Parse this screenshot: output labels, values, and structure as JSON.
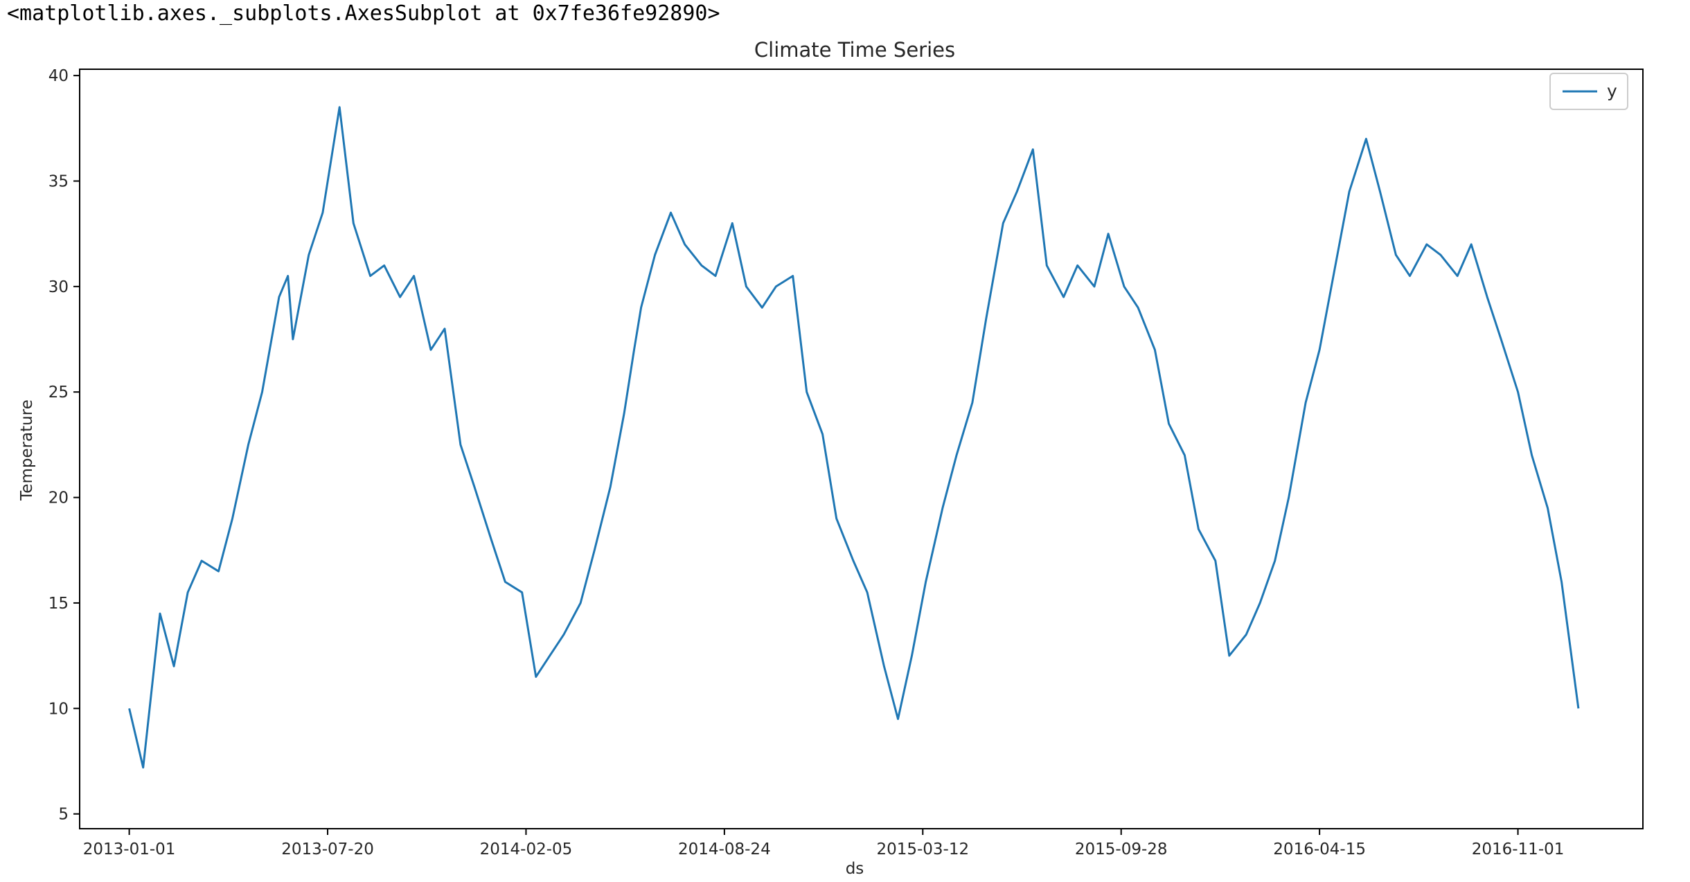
{
  "output_repr": "<matplotlib.axes._subplots.AxesSubplot at 0x7fe36fe92890>",
  "chart_data": {
    "type": "line",
    "title": "Climate Time Series",
    "xlabel": "ds",
    "ylabel": "Temperature",
    "ylim": [
      4.3,
      40.3
    ],
    "xlim": [
      "2012-11-12",
      "2017-03-07"
    ],
    "yticks": [
      5,
      10,
      15,
      20,
      25,
      30,
      35,
      40
    ],
    "xticks": [
      "2013-01-01",
      "2013-07-20",
      "2014-02-05",
      "2014-08-24",
      "2015-03-12",
      "2015-09-28",
      "2016-04-15",
      "2016-11-01"
    ],
    "grid": false,
    "legend_position": "top-right",
    "colors": {
      "line": "#1f77b4",
      "frame": "#000000"
    },
    "series": [
      {
        "name": "y",
        "x": [
          "2013-01-01",
          "2013-01-15",
          "2013-02-01",
          "2013-02-15",
          "2013-03-01",
          "2013-03-15",
          "2013-04-01",
          "2013-04-15",
          "2013-05-01",
          "2013-05-15",
          "2013-06-01",
          "2013-06-10",
          "2013-06-15",
          "2013-07-01",
          "2013-07-15",
          "2013-08-01",
          "2013-08-15",
          "2013-09-01",
          "2013-09-15",
          "2013-10-01",
          "2013-10-15",
          "2013-11-01",
          "2013-11-15",
          "2013-12-01",
          "2013-12-15",
          "2014-01-01",
          "2014-01-15",
          "2014-02-01",
          "2014-02-15",
          "2014-03-01",
          "2014-03-15",
          "2014-04-01",
          "2014-04-15",
          "2014-05-01",
          "2014-05-15",
          "2014-05-25",
          "2014-06-01",
          "2014-06-15",
          "2014-07-01",
          "2014-07-15",
          "2014-08-01",
          "2014-08-15",
          "2014-09-01",
          "2014-09-15",
          "2014-10-01",
          "2014-10-15",
          "2014-11-01",
          "2014-11-15",
          "2014-12-01",
          "2014-12-15",
          "2015-01-01",
          "2015-01-15",
          "2015-02-01",
          "2015-02-15",
          "2015-03-01",
          "2015-03-15",
          "2015-04-01",
          "2015-04-15",
          "2015-05-01",
          "2015-05-15",
          "2015-06-01",
          "2015-06-15",
          "2015-07-01",
          "2015-07-15",
          "2015-08-01",
          "2015-08-15",
          "2015-09-01",
          "2015-09-15",
          "2015-10-01",
          "2015-10-15",
          "2015-11-01",
          "2015-11-15",
          "2015-12-01",
          "2015-12-15",
          "2016-01-01",
          "2016-01-15",
          "2016-02-01",
          "2016-02-15",
          "2016-03-01",
          "2016-03-15",
          "2016-04-01",
          "2016-04-15",
          "2016-05-01",
          "2016-05-15",
          "2016-06-01",
          "2016-06-15",
          "2016-07-01",
          "2016-07-15",
          "2016-08-01",
          "2016-08-15",
          "2016-09-01",
          "2016-09-15",
          "2016-10-01",
          "2016-10-15",
          "2016-11-01",
          "2016-11-15",
          "2016-12-01",
          "2016-12-15",
          "2017-01-01"
        ],
        "values": [
          10.0,
          7.2,
          14.5,
          12.0,
          15.5,
          17.0,
          16.5,
          19.0,
          22.5,
          25.0,
          29.5,
          30.5,
          27.5,
          31.5,
          33.5,
          38.5,
          33.0,
          30.5,
          31.0,
          29.5,
          30.5,
          27.0,
          28.0,
          22.5,
          20.5,
          18.0,
          16.0,
          15.5,
          11.5,
          12.5,
          13.5,
          15.0,
          17.5,
          20.5,
          24.0,
          27.0,
          29.0,
          31.5,
          33.5,
          32.0,
          31.0,
          30.5,
          33.0,
          30.0,
          29.0,
          30.0,
          30.5,
          25.0,
          23.0,
          19.0,
          17.0,
          15.5,
          12.0,
          9.5,
          12.5,
          16.0,
          19.5,
          22.0,
          24.5,
          28.5,
          33.0,
          34.5,
          36.5,
          31.0,
          29.5,
          31.0,
          30.0,
          32.5,
          30.0,
          29.0,
          27.0,
          23.5,
          22.0,
          18.5,
          17.0,
          12.5,
          13.5,
          15.0,
          17.0,
          20.0,
          24.5,
          27.0,
          31.0,
          34.5,
          37.0,
          34.5,
          31.5,
          30.5,
          32.0,
          31.5,
          30.5,
          32.0,
          29.5,
          27.5,
          25.0,
          22.0,
          19.5,
          16.0,
          10.0
        ]
      }
    ]
  }
}
